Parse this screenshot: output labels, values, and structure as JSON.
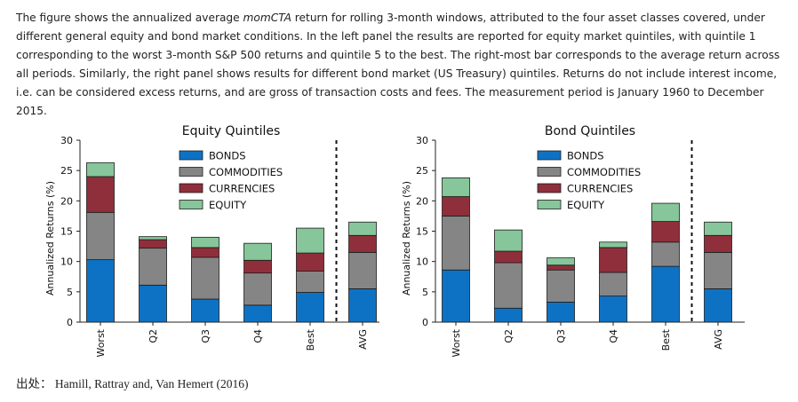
{
  "caption": {
    "part1": "The figure shows the annualized average ",
    "emph": "momCTA",
    "part2": " return for rolling 3-month windows, attributed to the four asset classes covered, under different general equity and bond market conditions. In the left panel the results are reported for equity market quintiles, with quintile 1 corresponding to the worst 3-month S&P 500 returns and quintile 5 to the best. The right-most bar corresponds to the average return across all periods. Similarly, the right panel shows results for different bond market (US Treasury) quintiles. Returns do not include interest income, i.e. can be considered excess returns, and are gross of transaction costs and fees. The measurement period is January 1960 to December 2015."
  },
  "source": "出处：  Hamill, Rattray and, Van Hemert (2016)",
  "colors": {
    "BONDS": "#0e72c4",
    "COMMODITIES": "#858585",
    "CURRENCIES": "#8f2f3b",
    "EQUITY": "#86c69a"
  },
  "chart_data": [
    {
      "type": "bar",
      "stacked": true,
      "title": "Equity Quintiles",
      "ylabel": "Annualized Returns (%)",
      "ylim": [
        0,
        30
      ],
      "yticks": [
        0,
        5,
        10,
        15,
        20,
        25,
        30
      ],
      "categories": [
        "Worst",
        "Q2",
        "Q3",
        "Q4",
        "Best",
        "AVG"
      ],
      "separator_after": "Best",
      "legend_position": "top-center",
      "series": [
        {
          "name": "BONDS",
          "values": [
            10.3,
            6.1,
            3.8,
            2.8,
            4.9,
            5.5
          ]
        },
        {
          "name": "COMMODITIES",
          "values": [
            7.8,
            6.1,
            6.9,
            5.3,
            3.5,
            6.0
          ]
        },
        {
          "name": "CURRENCIES",
          "values": [
            5.9,
            1.4,
            1.6,
            2.1,
            3.0,
            2.8
          ]
        },
        {
          "name": "EQUITY",
          "values": [
            2.3,
            0.5,
            1.7,
            2.8,
            4.1,
            2.2
          ]
        }
      ]
    },
    {
      "type": "bar",
      "stacked": true,
      "title": "Bond Quintiles",
      "ylabel": "Annualized Returns (%)",
      "ylim": [
        0,
        30
      ],
      "yticks": [
        0,
        5,
        10,
        15,
        20,
        25,
        30
      ],
      "categories": [
        "Worst",
        "Q2",
        "Q3",
        "Q4",
        "Best",
        "AVG"
      ],
      "separator_after": "Best",
      "legend_position": "top-center",
      "series": [
        {
          "name": "BONDS",
          "values": [
            8.6,
            2.3,
            3.3,
            4.3,
            9.2,
            5.5
          ]
        },
        {
          "name": "COMMODITIES",
          "values": [
            8.9,
            7.5,
            5.3,
            3.9,
            4.0,
            6.0
          ]
        },
        {
          "name": "CURRENCIES",
          "values": [
            3.2,
            1.9,
            0.8,
            4.1,
            3.4,
            2.8
          ]
        },
        {
          "name": "EQUITY",
          "values": [
            3.1,
            3.5,
            1.2,
            0.9,
            3.0,
            2.2
          ]
        }
      ]
    }
  ]
}
